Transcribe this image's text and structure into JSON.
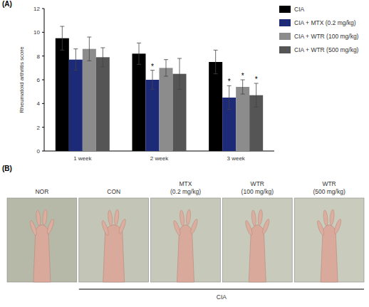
{
  "chart_data": {
    "type": "bar",
    "panel_label": "(A)",
    "y_label": "Rheumatoid arthritis score",
    "categories": [
      "1 week",
      "2 week",
      "3 week"
    ],
    "series": [
      {
        "name": "CIA",
        "color": "#000000",
        "values": [
          9.5,
          8.2,
          7.5
        ],
        "errors": [
          1.0,
          0.9,
          1.0
        ]
      },
      {
        "name": "CIA + MTX (0.2 mg/kg)",
        "color": "#1c2a78",
        "values": [
          7.7,
          6.0,
          4.5
        ],
        "errors": [
          0.9,
          0.8,
          1.0
        ]
      },
      {
        "name": "CIA + WTR (100 mg/kg)",
        "color": "#8c8c8c",
        "values": [
          8.6,
          7.0,
          5.4
        ],
        "errors": [
          1.0,
          0.7,
          0.6
        ]
      },
      {
        "name": "CIA + WTR (500 mg/kg)",
        "color": "#555555",
        "values": [
          7.9,
          6.5,
          4.7
        ],
        "errors": [
          0.8,
          1.3,
          1.0
        ]
      }
    ],
    "ylim": [
      0,
      12
    ],
    "yticks": [
      0,
      2,
      4,
      6,
      8,
      10,
      12
    ],
    "legend": "right",
    "annotations": [
      {
        "text": "*",
        "series": 1,
        "category": 1
      },
      {
        "text": "*",
        "series": 1,
        "category": 2
      },
      {
        "text": "*",
        "series": 2,
        "category": 2
      },
      {
        "text": "*",
        "series": 3,
        "category": 2
      }
    ]
  },
  "panel_b": {
    "panel_label": "(B)",
    "images": [
      {
        "label": "NOR"
      },
      {
        "label": "CON"
      },
      {
        "label": "MTX (0.2 mg/kg)"
      },
      {
        "label": "WTR (100 mg/kg)"
      },
      {
        "label": "WTR (500 mg/kg)"
      }
    ],
    "group_label": "CIA"
  }
}
